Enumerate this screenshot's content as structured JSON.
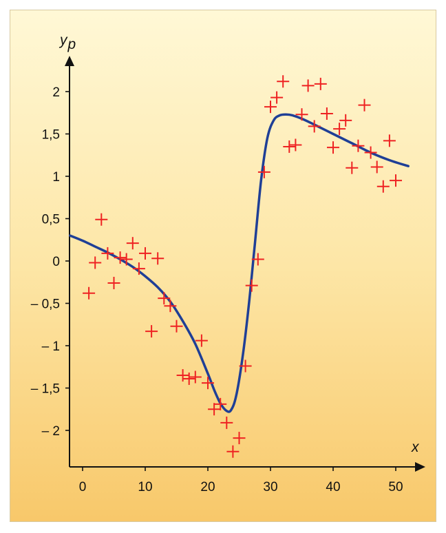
{
  "chart_data": {
    "type": "scatter",
    "title": "",
    "xlabel": "x",
    "ylabel": "y_p",
    "ylabel_main": "y",
    "ylabel_sub": "p",
    "xlim": [
      -2,
      52
    ],
    "ylim": [
      -2.4,
      2.4
    ],
    "x_ticks": [
      0,
      10,
      20,
      30,
      40,
      50
    ],
    "x_tick_labels": [
      "0",
      "10",
      "20",
      "30",
      "40",
      "50"
    ],
    "y_ticks": [
      2,
      1.5,
      1,
      0.5,
      0,
      -0.5,
      -1,
      -1.5,
      -2
    ],
    "y_tick_labels": [
      "2",
      "1,5",
      "1",
      "0,5",
      "0",
      "– 0,5",
      "– 1",
      "– 1,5",
      "– 2"
    ],
    "grid": false,
    "legend": "none",
    "colors": {
      "points": "#ee2222",
      "curve": "#1f3f96",
      "axis": "#111111"
    },
    "series": [
      {
        "kind": "points",
        "marker": "plus",
        "x": [
          1,
          2,
          3,
          4,
          5,
          6,
          7,
          8,
          9,
          10,
          11,
          12,
          13,
          14,
          15,
          16,
          17,
          18,
          19,
          20,
          21,
          22,
          23,
          24,
          25,
          26,
          27,
          28,
          29,
          30,
          31,
          32,
          33,
          34,
          35,
          36,
          37,
          38,
          39,
          40,
          41,
          42,
          43,
          44,
          45,
          46,
          47,
          48,
          49,
          50
        ],
        "y": [
          -0.38,
          -0.02,
          0.49,
          0.09,
          -0.26,
          0.04,
          0.02,
          0.21,
          -0.09,
          0.09,
          -0.83,
          0.03,
          -0.44,
          -0.53,
          -0.77,
          -1.35,
          -1.39,
          -1.37,
          -0.94,
          -1.44,
          -1.75,
          -1.69,
          -1.91,
          -2.25,
          -2.09,
          -1.24,
          -0.29,
          0.02,
          1.05,
          1.82,
          1.93,
          2.12,
          1.35,
          1.37,
          1.73,
          2.07,
          1.59,
          2.09,
          1.74,
          1.34,
          1.56,
          1.66,
          1.1,
          1.36,
          1.84,
          1.28,
          1.11,
          0.88,
          1.42,
          0.95
        ]
      },
      {
        "kind": "curve",
        "x": [
          -2,
          0,
          2,
          4,
          6,
          8,
          10,
          12,
          14,
          16,
          18,
          20,
          21,
          22,
          23,
          23.7,
          24.5,
          25.5,
          26.5,
          27.5,
          28.5,
          29.5,
          30.5,
          31.5,
          32.5,
          33.5,
          35,
          37,
          40,
          43,
          46,
          49,
          52
        ],
        "y": [
          0.3,
          0.24,
          0.17,
          0.1,
          0.02,
          -0.07,
          -0.18,
          -0.31,
          -0.48,
          -0.71,
          -0.98,
          -1.33,
          -1.52,
          -1.68,
          -1.77,
          -1.76,
          -1.6,
          -1.16,
          -0.55,
          0.2,
          0.95,
          1.45,
          1.66,
          1.72,
          1.73,
          1.72,
          1.68,
          1.61,
          1.5,
          1.39,
          1.28,
          1.19,
          1.12
        ]
      }
    ]
  }
}
